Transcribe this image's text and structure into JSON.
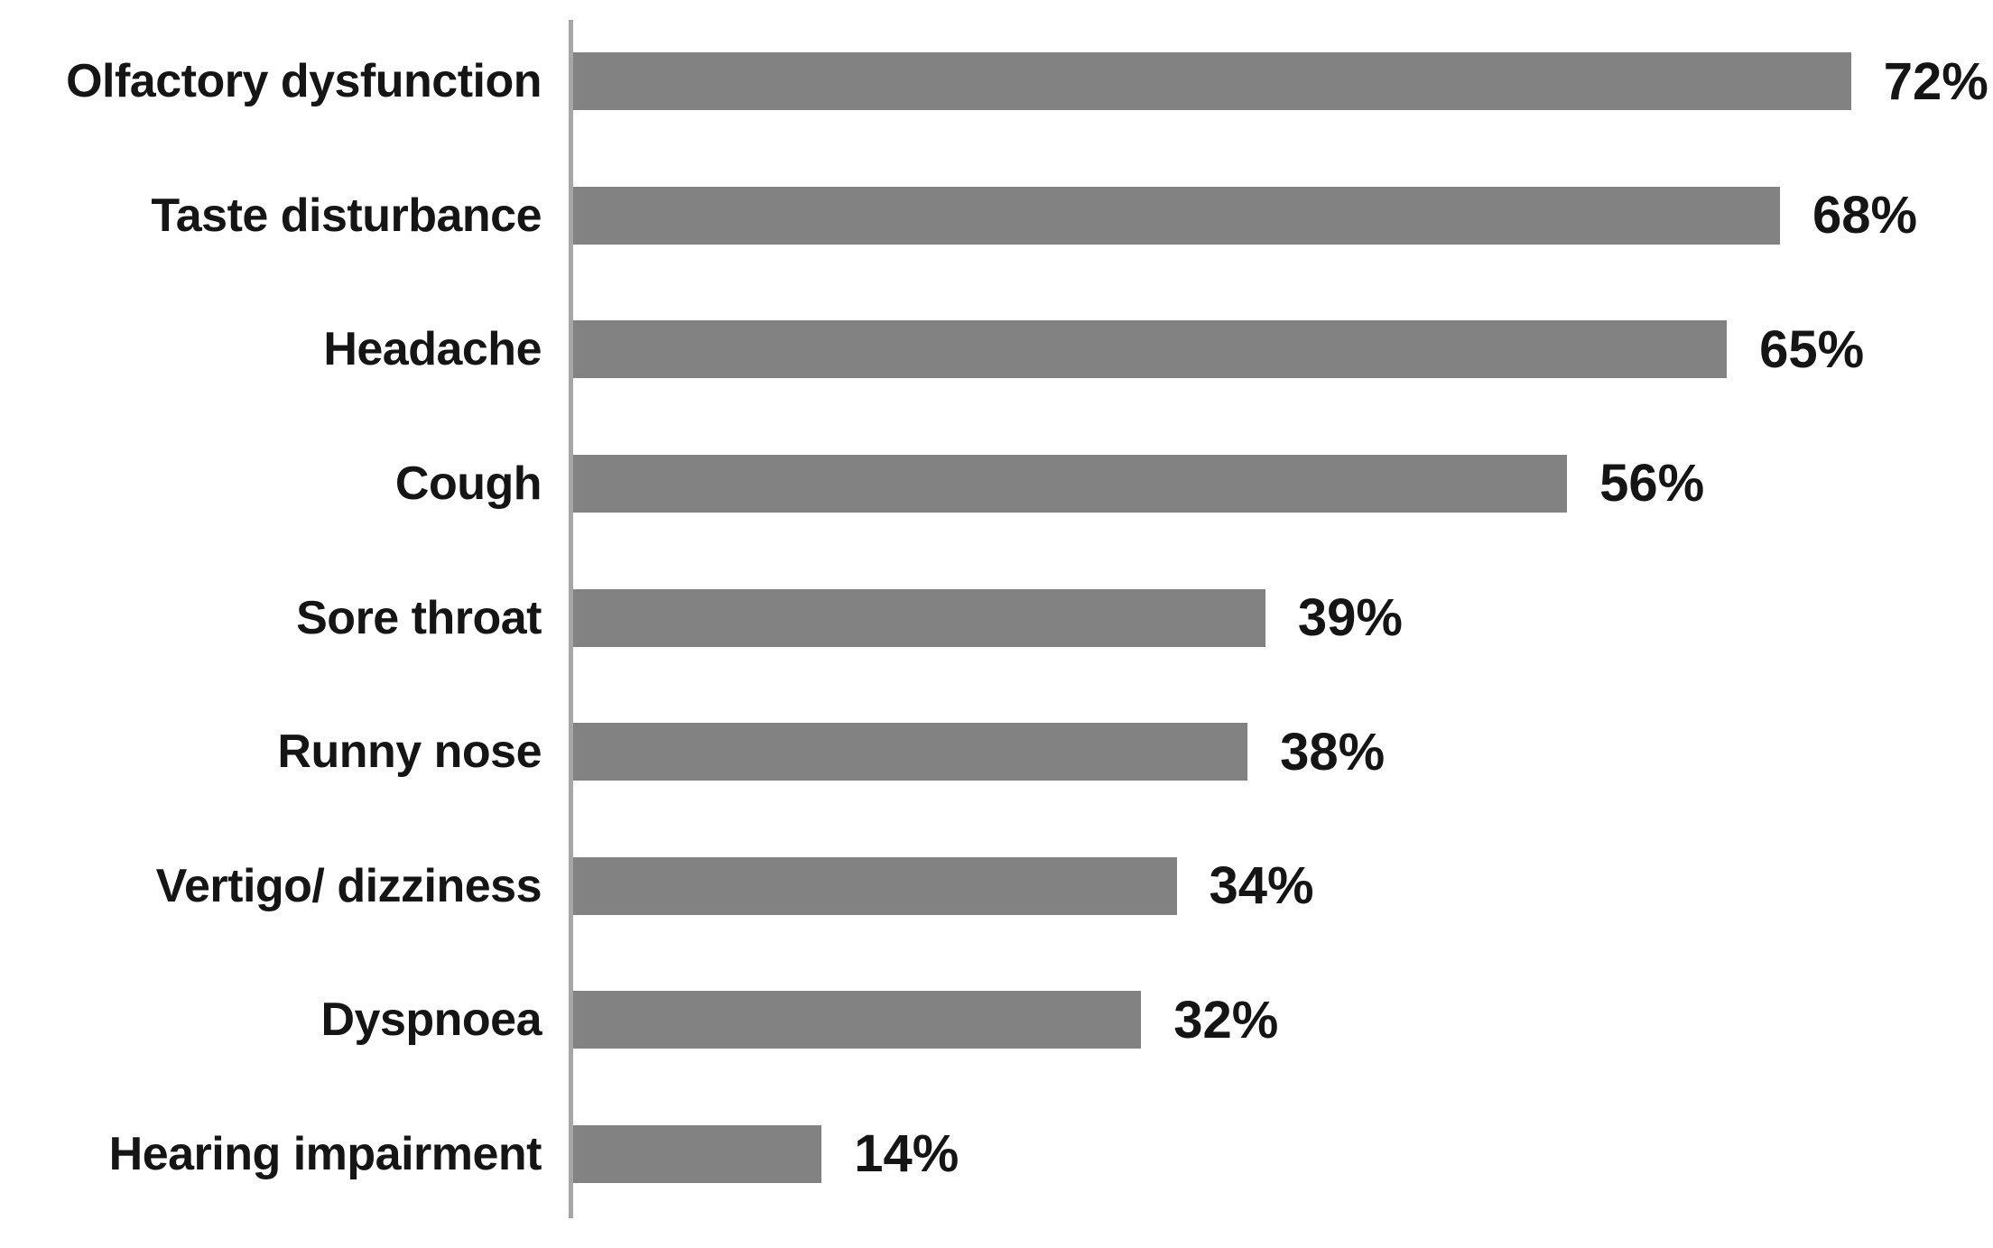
{
  "chart_data": {
    "type": "bar",
    "orientation": "horizontal",
    "title": "",
    "xlabel": "",
    "ylabel": "",
    "categories": [
      "Olfactory dysfunction",
      "Taste disturbance",
      "Headache",
      "Cough",
      "Sore throat",
      "Runny nose",
      "Vertigo/ dizziness",
      "Dyspnoea",
      "Hearing impairment"
    ],
    "values": [
      72,
      68,
      65,
      56,
      39,
      38,
      34,
      32,
      14
    ],
    "value_labels": [
      "72%",
      "68%",
      "65%",
      "56%",
      "39%",
      "38%",
      "34%",
      "32%",
      "14%"
    ],
    "xlim": [
      0,
      80
    ],
    "grid": false,
    "legend_position": "none",
    "bar_color": "#828282",
    "axis_color": "#a6a6a6",
    "text_color": "#151515",
    "background_color": "#ffffff"
  }
}
